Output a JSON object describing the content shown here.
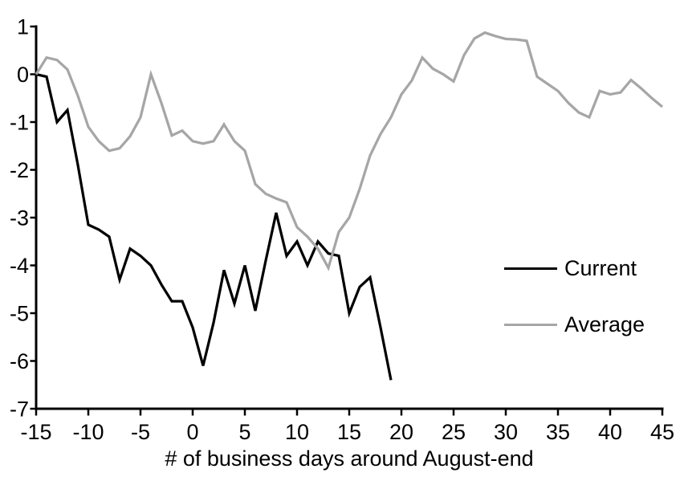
{
  "chart_data": {
    "type": "line",
    "title": "",
    "xlabel": "# of business days around August-end",
    "ylabel": "",
    "xlim": [
      -15,
      45
    ],
    "ylim": [
      -7,
      1
    ],
    "x_ticks": [
      -15,
      -10,
      -5,
      0,
      5,
      10,
      15,
      20,
      25,
      30,
      35,
      40,
      45
    ],
    "x_tick_labels": [
      "-15",
      "-10",
      "-5",
      "0",
      "5",
      "10",
      "15",
      "20",
      "25",
      "30",
      "35",
      "40",
      "45"
    ],
    "y_ticks": [
      1,
      0,
      -1,
      -2,
      -3,
      -4,
      -5,
      -6,
      -7
    ],
    "y_tick_labels": [
      "1",
      "0",
      "-1",
      "-2",
      "-3",
      "-4",
      "-5",
      "-6",
      "-7"
    ],
    "grid": false,
    "legend_position": "right-middle",
    "axis_color": "#000000",
    "series": [
      {
        "name": "Current",
        "color": "#000000",
        "points": [
          [
            -15,
            0
          ],
          [
            -14,
            -0.05
          ],
          [
            -13,
            -1
          ],
          [
            -12,
            -0.75
          ],
          [
            -11,
            -1.9
          ],
          [
            -10,
            -3.15
          ],
          [
            -9,
            -3.25
          ],
          [
            -8,
            -3.4
          ],
          [
            -7,
            -4.3
          ],
          [
            -6,
            -3.65
          ],
          [
            -5,
            -3.8
          ],
          [
            -4,
            -4
          ],
          [
            -3,
            -4.4
          ],
          [
            -2,
            -4.75
          ],
          [
            -1,
            -4.75
          ],
          [
            0,
            -5.3
          ],
          [
            1,
            -6.1
          ],
          [
            2,
            -5.2
          ],
          [
            3,
            -4.1
          ],
          [
            4,
            -4.8
          ],
          [
            5,
            -4
          ],
          [
            6,
            -4.95
          ],
          [
            7,
            -3.9
          ],
          [
            8,
            -2.9
          ],
          [
            9,
            -3.8
          ],
          [
            10,
            -3.5
          ],
          [
            11,
            -4
          ],
          [
            12,
            -3.5
          ],
          [
            13,
            -3.75
          ],
          [
            14,
            -3.8
          ],
          [
            15,
            -5
          ],
          [
            16,
            -4.45
          ],
          [
            17,
            -4.25
          ],
          [
            18,
            -5.3
          ],
          [
            19,
            -6.4
          ]
        ]
      },
      {
        "name": "Average",
        "color": "#a6a6a6",
        "points": [
          [
            -15,
            0
          ],
          [
            -14,
            0.35
          ],
          [
            -13,
            0.3
          ],
          [
            -12,
            0.1
          ],
          [
            -11,
            -0.45
          ],
          [
            -10,
            -1.1
          ],
          [
            -9,
            -1.4
          ],
          [
            -8,
            -1.6
          ],
          [
            -7,
            -1.55
          ],
          [
            -6,
            -1.3
          ],
          [
            -5,
            -0.9
          ],
          [
            -4,
            0
          ],
          [
            -3,
            -0.6
          ],
          [
            -2,
            -1.28
          ],
          [
            -1,
            -1.18
          ],
          [
            0,
            -1.4
          ],
          [
            1,
            -1.45
          ],
          [
            2,
            -1.4
          ],
          [
            3,
            -1.05
          ],
          [
            4,
            -1.4
          ],
          [
            5,
            -1.6
          ],
          [
            6,
            -2.3
          ],
          [
            7,
            -2.5
          ],
          [
            8,
            -2.6
          ],
          [
            9,
            -2.68
          ],
          [
            10,
            -3.2
          ],
          [
            11,
            -3.4
          ],
          [
            12,
            -3.65
          ],
          [
            13,
            -4.05
          ],
          [
            14,
            -3.3
          ],
          [
            15,
            -3
          ],
          [
            16,
            -2.4
          ],
          [
            17,
            -1.7
          ],
          [
            18,
            -1.25
          ],
          [
            19,
            -0.9
          ],
          [
            20,
            -0.42
          ],
          [
            21,
            -0.13
          ],
          [
            22,
            0.35
          ],
          [
            23,
            0.12
          ],
          [
            24,
            0
          ],
          [
            25,
            -0.15
          ],
          [
            26,
            0.4
          ],
          [
            27,
            0.75
          ],
          [
            28,
            0.87
          ],
          [
            29,
            0.8
          ],
          [
            30,
            0.74
          ],
          [
            31,
            0.73
          ],
          [
            32,
            0.7
          ],
          [
            33,
            -0.05
          ],
          [
            34,
            -0.2
          ],
          [
            35,
            -0.35
          ],
          [
            36,
            -0.6
          ],
          [
            37,
            -0.8
          ],
          [
            38,
            -0.9
          ],
          [
            39,
            -0.35
          ],
          [
            40,
            -0.42
          ],
          [
            41,
            -0.38
          ],
          [
            42,
            -0.12
          ],
          [
            43,
            -0.3
          ],
          [
            44,
            -0.5
          ],
          [
            45,
            -0.68
          ]
        ]
      }
    ]
  }
}
